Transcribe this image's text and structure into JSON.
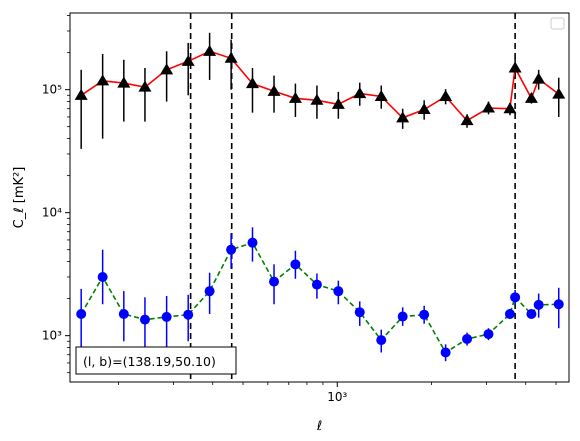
{
  "chart_data": {
    "type": "line",
    "xscale": "log",
    "yscale": "log",
    "xlim": [
      140,
      5500
    ],
    "ylim": [
      420,
      420000
    ],
    "xlabel": "ℓ",
    "ylabel": "C_ℓ  [mK²]",
    "xticks_major": [
      {
        "value": 1000,
        "label": "10³"
      }
    ],
    "xticks_minor": [
      200,
      300,
      400,
      500,
      600,
      700,
      800,
      900,
      2000,
      3000,
      4000,
      5000
    ],
    "yticks_major": [
      {
        "value": 1000,
        "label": "10³"
      },
      {
        "value": 10000,
        "label": "10⁴"
      },
      {
        "value": 100000,
        "label": "10⁵"
      }
    ],
    "grid": false,
    "legend": {
      "placement": "top-right",
      "entries": []
    },
    "annotation": {
      "text": "(l, b)=(138.19,50.10)",
      "placement": "bottom-left"
    },
    "vlines": [
      {
        "x": 340,
        "style": "dashed",
        "color": "#000000"
      },
      {
        "x": 460,
        "style": "dashed",
        "color": "#000000"
      },
      {
        "x": 3700,
        "style": "dashed",
        "color": "#000000"
      }
    ],
    "series": [
      {
        "marker": "triangle",
        "line_color": "#ff0000",
        "line_style": "solid",
        "marker_color": "#000000",
        "errorbar_color": "#000000",
        "points": [
          {
            "x": 152,
            "y": 90000,
            "ylo": 33000,
            "yhi": 145000
          },
          {
            "x": 178,
            "y": 118000,
            "ylo": 40000,
            "yhi": 195000
          },
          {
            "x": 208,
            "y": 113000,
            "ylo": 55000,
            "yhi": 175000
          },
          {
            "x": 243,
            "y": 105000,
            "ylo": 55000,
            "yhi": 150000
          },
          {
            "x": 285,
            "y": 145000,
            "ylo": 80000,
            "yhi": 205000
          },
          {
            "x": 334,
            "y": 170000,
            "ylo": 90000,
            "yhi": 240000
          },
          {
            "x": 391,
            "y": 205000,
            "ylo": 120000,
            "yhi": 290000
          },
          {
            "x": 458,
            "y": 180000,
            "ylo": 100000,
            "yhi": 255000
          },
          {
            "x": 536,
            "y": 112000,
            "ylo": 65000,
            "yhi": 150000
          },
          {
            "x": 628,
            "y": 97000,
            "ylo": 65000,
            "yhi": 130000
          },
          {
            "x": 735,
            "y": 85000,
            "ylo": 60000,
            "yhi": 112000
          },
          {
            "x": 861,
            "y": 82000,
            "ylo": 58000,
            "yhi": 108000
          },
          {
            "x": 1008,
            "y": 76000,
            "ylo": 58000,
            "yhi": 96000
          },
          {
            "x": 1180,
            "y": 93000,
            "ylo": 74000,
            "yhi": 114000
          },
          {
            "x": 1382,
            "y": 88000,
            "ylo": 70000,
            "yhi": 108000
          },
          {
            "x": 1618,
            "y": 59000,
            "ylo": 48000,
            "yhi": 70000
          },
          {
            "x": 1895,
            "y": 69000,
            "ylo": 57000,
            "yhi": 82000
          },
          {
            "x": 2219,
            "y": 88000,
            "ylo": 76000,
            "yhi": 101000
          },
          {
            "x": 2598,
            "y": 56000,
            "ylo": 49000,
            "yhi": 63000
          },
          {
            "x": 3042,
            "y": 71000,
            "ylo": 63000,
            "yhi": 80000
          },
          {
            "x": 3562,
            "y": 70000,
            "ylo": 62000,
            "yhi": 78000
          },
          {
            "x": 4171,
            "y": 85000,
            "ylo": 77000,
            "yhi": 94000
          },
          {
            "x": 3700,
            "y": 150000,
            "ylo": 125000,
            "yhi": 180000
          },
          {
            "x": 4400,
            "y": 122000,
            "ylo": 100000,
            "yhi": 145000
          },
          {
            "x": 5100,
            "y": 92000,
            "ylo": 60000,
            "yhi": 125000
          }
        ]
      },
      {
        "marker": "circle",
        "line_color": "#008000",
        "line_style": "dashed",
        "marker_color": "#0000ff",
        "errorbar_color": "#0000ff",
        "points": [
          {
            "x": 152,
            "y": 1500,
            "ylo": 800,
            "yhi": 2400
          },
          {
            "x": 178,
            "y": 3000,
            "ylo": 1800,
            "yhi": 5000
          },
          {
            "x": 208,
            "y": 1500,
            "ylo": 900,
            "yhi": 2300
          },
          {
            "x": 243,
            "y": 1350,
            "ylo": 800,
            "yhi": 2050
          },
          {
            "x": 285,
            "y": 1420,
            "ylo": 800,
            "yhi": 2100
          },
          {
            "x": 334,
            "y": 1480,
            "ylo": 900,
            "yhi": 2150
          },
          {
            "x": 391,
            "y": 2300,
            "ylo": 1500,
            "yhi": 3250
          },
          {
            "x": 458,
            "y": 5000,
            "ylo": 3500,
            "yhi": 6800
          },
          {
            "x": 536,
            "y": 5700,
            "ylo": 4000,
            "yhi": 7600
          },
          {
            "x": 628,
            "y": 2750,
            "ylo": 1800,
            "yhi": 3800
          },
          {
            "x": 735,
            "y": 3800,
            "ylo": 2900,
            "yhi": 4900
          },
          {
            "x": 861,
            "y": 2600,
            "ylo": 2000,
            "yhi": 3200
          },
          {
            "x": 1008,
            "y": 2300,
            "ylo": 1800,
            "yhi": 2800
          },
          {
            "x": 1180,
            "y": 1550,
            "ylo": 1200,
            "yhi": 1900
          },
          {
            "x": 1382,
            "y": 920,
            "ylo": 730,
            "yhi": 1120
          },
          {
            "x": 1618,
            "y": 1430,
            "ylo": 1200,
            "yhi": 1700
          },
          {
            "x": 1895,
            "y": 1480,
            "ylo": 1250,
            "yhi": 1750
          },
          {
            "x": 2219,
            "y": 730,
            "ylo": 620,
            "yhi": 850
          },
          {
            "x": 2598,
            "y": 940,
            "ylo": 830,
            "yhi": 1060
          },
          {
            "x": 3042,
            "y": 1030,
            "ylo": 920,
            "yhi": 1150
          },
          {
            "x": 3562,
            "y": 1500,
            "ylo": 1380,
            "yhi": 1650
          },
          {
            "x": 4171,
            "y": 1500,
            "ylo": 1380,
            "yhi": 1640
          },
          {
            "x": 3700,
            "y": 2050,
            "ylo": 1800,
            "yhi": 2350
          },
          {
            "x": 4400,
            "y": 1780,
            "ylo": 1400,
            "yhi": 2200
          },
          {
            "x": 5100,
            "y": 1800,
            "ylo": 1150,
            "yhi": 2450
          }
        ]
      }
    ]
  }
}
